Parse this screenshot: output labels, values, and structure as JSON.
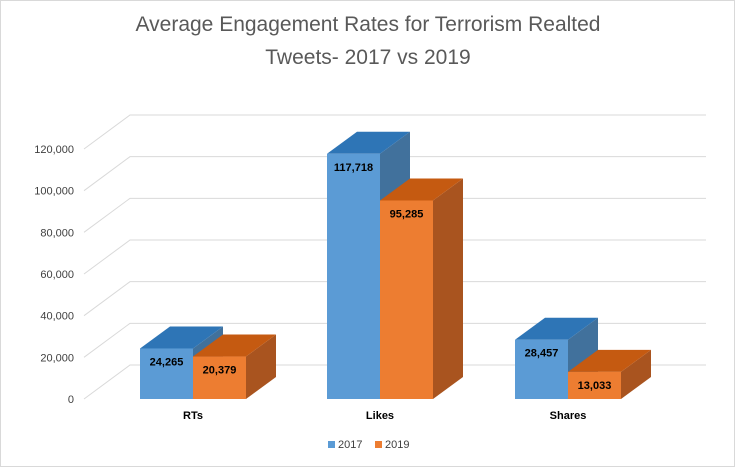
{
  "chart_data": {
    "type": "bar",
    "title_lines": [
      "Average Engagement Rates for Terrorism Realted",
      "Tweets- 2017 vs 2019"
    ],
    "categories": [
      "RTs",
      "Likes",
      "Shares"
    ],
    "series": [
      {
        "name": "2017",
        "values": [
          24265,
          117718,
          28457
        ],
        "labels": [
          "24,265",
          "117,718",
          "28,457"
        ],
        "color": "#5B9BD5",
        "side_color": "#41719C",
        "top_color": "#2E75B6"
      },
      {
        "name": "2019",
        "values": [
          20379,
          95285,
          13033
        ],
        "labels": [
          "20,379",
          "95,285",
          "13,033"
        ],
        "color": "#ED7D31",
        "side_color": "#A9541F",
        "top_color": "#C55A11"
      }
    ],
    "ylim": [
      0,
      120000
    ],
    "yticks": [
      0,
      20000,
      40000,
      60000,
      80000,
      100000,
      120000
    ],
    "ytick_labels": [
      "0",
      "20,000",
      "40,000",
      "60,000",
      "80,000",
      "100,000",
      "120,000"
    ],
    "xlabel": "",
    "ylabel": "",
    "grid": true,
    "legend_position": "bottom"
  }
}
